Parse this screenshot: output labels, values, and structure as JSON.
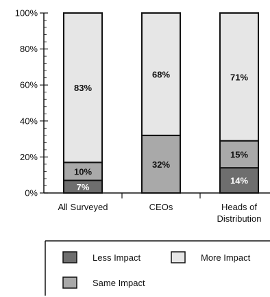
{
  "chart_data": {
    "type": "bar",
    "stacked": true,
    "categories": [
      [
        "All Surveyed"
      ],
      [
        "CEOs"
      ],
      [
        "Heads of",
        "Distribution"
      ]
    ],
    "series": [
      {
        "name": "Less Impact",
        "values": [
          7,
          0,
          14
        ],
        "labels": [
          "7%",
          "",
          "14%"
        ],
        "color": "#6e6e6e"
      },
      {
        "name": "Same Impact",
        "values": [
          10,
          32,
          15
        ],
        "labels": [
          "10%",
          "32%",
          "15%"
        ],
        "color": "#a9a9a9"
      },
      {
        "name": "More Impact",
        "values": [
          83,
          68,
          71
        ],
        "labels": [
          "83%",
          "68%",
          "71%"
        ],
        "color": "#e6e6e6"
      }
    ],
    "yticks": [
      "0%",
      "20%",
      "40%",
      "60%",
      "80%",
      "100%"
    ],
    "ylim": [
      0,
      100
    ],
    "grid": false,
    "legend_position": "bottom",
    "legend_order": [
      "Less Impact",
      "More Impact",
      "Same Impact"
    ]
  }
}
